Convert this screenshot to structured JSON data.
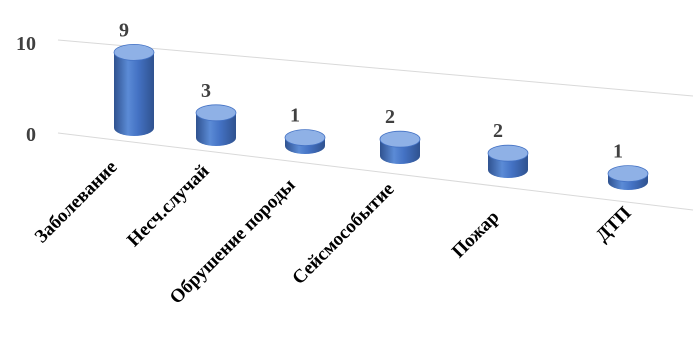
{
  "chart_data": {
    "type": "bar",
    "style": "3d-cylinder",
    "categories": [
      "Заболевание",
      "Несч.случай",
      "Обрушение породы",
      "Сейсмособытие",
      "Пожар",
      "ДТП"
    ],
    "values": [
      9,
      3,
      1,
      2,
      2,
      1
    ],
    "data_labels": [
      "9",
      "3",
      "1",
      "2",
      "2",
      "1"
    ],
    "yticks": [
      "0",
      "10"
    ],
    "ylim": [
      0,
      10
    ],
    "grid": true,
    "legend": "none",
    "colors": {
      "bar": "#4472c4",
      "bar_dark": "#2f528f",
      "bar_light": "#8fb1e6",
      "grid": "#d9d9d9"
    }
  }
}
